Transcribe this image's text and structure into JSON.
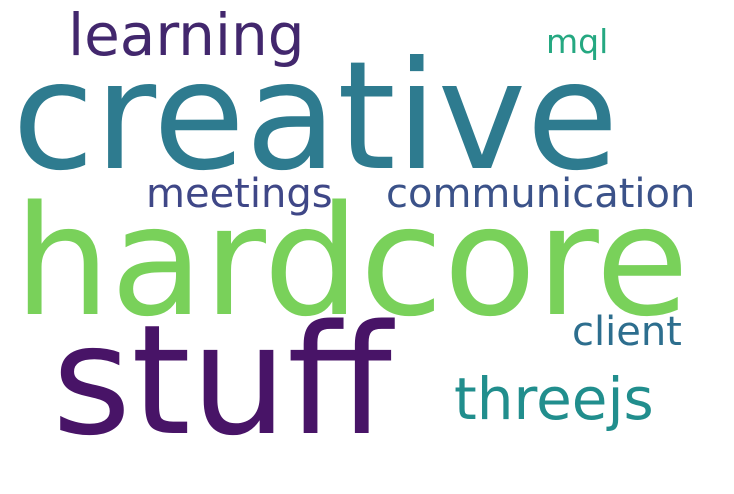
{
  "words": {
    "creative": "creative",
    "hardcore": "hardcore",
    "stuff": "stuff",
    "learning": "learning",
    "mql": "mql",
    "meetings": "meetings",
    "communication": "communication",
    "client": "client",
    "threejs": "threejs"
  },
  "colors": {
    "creative": "#2e7b8f",
    "hardcore": "#79d15a",
    "stuff": "#481467",
    "learning": "#42276d",
    "mql": "#25a881",
    "meetings": "#3f4787",
    "communication": "#3b5289",
    "client": "#2d6e8e",
    "threejs": "#218e8d",
    "background": "#ffffff"
  }
}
